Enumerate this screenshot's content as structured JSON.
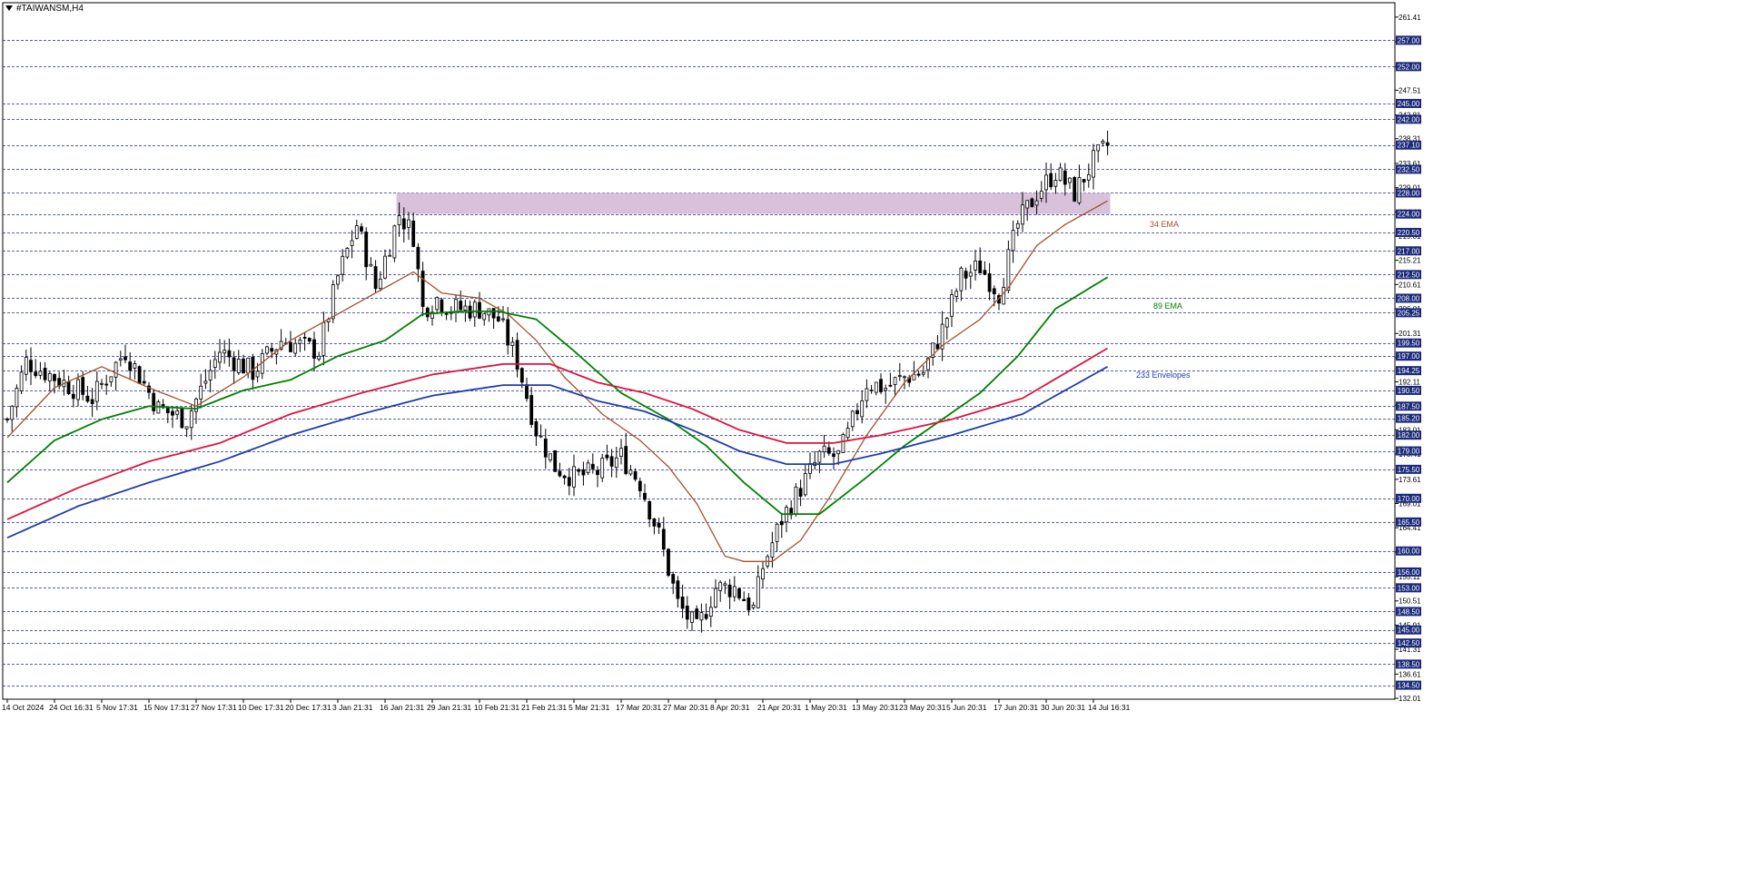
{
  "symbol": "#TAIWANSM,H4",
  "chart_data": {
    "type": "candlestick",
    "title": "#TAIWANSM,H4",
    "ylim": [
      132.01,
      262.41
    ],
    "y_ticks": [
      "261.41",
      "256.71",
      "252.01",
      "247.51",
      "242.81",
      "238.31",
      "233.61",
      "229.01",
      "224.41",
      "219.81",
      "215.21",
      "210.61",
      "206.01",
      "201.31",
      "196.71",
      "192.11",
      "187.61",
      "183.01",
      "178.41",
      "173.61",
      "169.01",
      "164.41",
      "159.81",
      "155.11",
      "150.51",
      "145.91",
      "141.31",
      "136.61",
      "132.01"
    ],
    "levels": [
      257.0,
      252.0,
      245.0,
      242.0,
      237.1,
      232.5,
      228.0,
      224.0,
      220.5,
      217.0,
      212.5,
      208.0,
      205.25,
      199.5,
      197.0,
      194.25,
      190.5,
      187.5,
      185.2,
      182.0,
      179.0,
      175.5,
      170.0,
      165.5,
      160.0,
      156.0,
      153.0,
      148.5,
      145.0,
      142.5,
      138.5,
      134.5
    ],
    "level_labels": [
      "257.00",
      "252.00",
      "245.00",
      "242.00",
      "237.10",
      "232.50",
      "228.00",
      "224.00",
      "220.50",
      "217.00",
      "212.50",
      "208.00",
      "205.25",
      "199.50",
      "197.00",
      "194.25",
      "190.50",
      "187.50",
      "185.20",
      "182.00",
      "179.00",
      "175.50",
      "170.00",
      "165.50",
      "160.00",
      "156.00",
      "153.00",
      "148.50",
      "145.00",
      "142.50",
      "138.50",
      "134.50"
    ],
    "zone": {
      "from_index": 83,
      "to_index": 233,
      "low": 224.0,
      "high": 228.0,
      "color": "#d6bfd9"
    },
    "x_labels": [
      "14 Oct 2024",
      "24 Oct 16:31",
      "5 Nov 17:31",
      "15 Nov 17:31",
      "27 Nov 17:31",
      "10 Dec 17:31",
      "20 Dec 17:31",
      "3 Jan 21:31",
      "16 Jan 21:31",
      "29 Jan 21:31",
      "10 Feb 21:31",
      "21 Feb 21:31",
      "5 Mar 21:31",
      "17 Mar 20:31",
      "27 Mar 20:31",
      "8 Apr 20:31",
      "21 Apr 20:31",
      "1 May 20:31",
      "13 May 20:31",
      "23 May 20:31",
      "5 Jun 20:31",
      "17 Jun 20:31",
      "30 Jun 20:31",
      "14 Jul 16:31"
    ],
    "x_label_index": [
      0,
      10,
      20,
      30,
      40,
      50,
      60,
      70,
      80,
      90,
      100,
      110,
      120,
      130,
      140,
      150,
      160,
      170,
      180,
      190,
      200,
      210,
      220,
      230
    ],
    "n_bars": 234,
    "close_anchors": [
      [
        0,
        185
      ],
      [
        4,
        196
      ],
      [
        10,
        193
      ],
      [
        18,
        189
      ],
      [
        25,
        198
      ],
      [
        32,
        187
      ],
      [
        38,
        185
      ],
      [
        45,
        198
      ],
      [
        52,
        194
      ],
      [
        58,
        200
      ],
      [
        66,
        198
      ],
      [
        70,
        212
      ],
      [
        74,
        222
      ],
      [
        78,
        210
      ],
      [
        83,
        224
      ],
      [
        86,
        220
      ],
      [
        88,
        206
      ],
      [
        91,
        208
      ],
      [
        94,
        206
      ],
      [
        100,
        206
      ],
      [
        104,
        204
      ],
      [
        108,
        196
      ],
      [
        112,
        183
      ],
      [
        116,
        176
      ],
      [
        120,
        174
      ],
      [
        125,
        175
      ],
      [
        130,
        178
      ],
      [
        134,
        173
      ],
      [
        138,
        163
      ],
      [
        142,
        150
      ],
      [
        146,
        145
      ],
      [
        150,
        153
      ],
      [
        154,
        153
      ],
      [
        158,
        149
      ],
      [
        160,
        157
      ],
      [
        164,
        166
      ],
      [
        168,
        172
      ],
      [
        172,
        178
      ],
      [
        176,
        178
      ],
      [
        178,
        182
      ],
      [
        182,
        192
      ],
      [
        186,
        191
      ],
      [
        190,
        193
      ],
      [
        194,
        194
      ],
      [
        198,
        202
      ],
      [
        202,
        212
      ],
      [
        206,
        214
      ],
      [
        210,
        209
      ],
      [
        214,
        222
      ],
      [
        218,
        228
      ],
      [
        222,
        232
      ],
      [
        226,
        228
      ],
      [
        230,
        234
      ],
      [
        233,
        237
      ]
    ],
    "series": [
      {
        "name": "34 EMA",
        "color": "#a0522d",
        "anchors": [
          [
            0,
            181.5
          ],
          [
            10,
            191
          ],
          [
            20,
            195
          ],
          [
            30,
            191
          ],
          [
            40,
            187.5
          ],
          [
            50,
            193
          ],
          [
            60,
            200
          ],
          [
            70,
            205
          ],
          [
            78,
            209
          ],
          [
            86,
            213
          ],
          [
            92,
            209
          ],
          [
            100,
            208
          ],
          [
            106,
            205
          ],
          [
            112,
            200
          ],
          [
            118,
            193
          ],
          [
            126,
            186
          ],
          [
            134,
            181
          ],
          [
            140,
            176
          ],
          [
            146,
            169
          ],
          [
            152,
            159
          ],
          [
            156,
            158
          ],
          [
            162,
            158
          ],
          [
            168,
            162
          ],
          [
            174,
            170
          ],
          [
            182,
            182
          ],
          [
            190,
            192
          ],
          [
            198,
            199
          ],
          [
            206,
            204
          ],
          [
            212,
            210
          ],
          [
            218,
            218
          ],
          [
            224,
            222
          ],
          [
            233,
            226.5
          ]
        ]
      },
      {
        "name": "89 EMA",
        "color": "#008000",
        "anchors": [
          [
            0,
            173
          ],
          [
            10,
            181
          ],
          [
            20,
            185
          ],
          [
            30,
            187.5
          ],
          [
            40,
            187
          ],
          [
            50,
            190.5
          ],
          [
            60,
            192.5
          ],
          [
            70,
            197
          ],
          [
            80,
            200
          ],
          [
            88,
            205
          ],
          [
            96,
            205.5
          ],
          [
            104,
            205.5
          ],
          [
            112,
            204
          ],
          [
            120,
            198
          ],
          [
            130,
            190
          ],
          [
            140,
            185
          ],
          [
            148,
            180
          ],
          [
            156,
            173
          ],
          [
            164,
            167
          ],
          [
            172,
            167
          ],
          [
            182,
            174
          ],
          [
            190,
            180
          ],
          [
            198,
            185
          ],
          [
            206,
            190
          ],
          [
            214,
            197
          ],
          [
            222,
            206
          ],
          [
            233,
            212
          ]
        ]
      },
      {
        "name": "233 Envelopes",
        "color": "#dc143c",
        "anchors": [
          [
            0,
            166
          ],
          [
            15,
            172
          ],
          [
            30,
            177
          ],
          [
            45,
            180.5
          ],
          [
            60,
            186
          ],
          [
            75,
            190
          ],
          [
            90,
            193.5
          ],
          [
            105,
            195.5
          ],
          [
            115,
            195.5
          ],
          [
            125,
            192
          ],
          [
            135,
            190
          ],
          [
            145,
            187
          ],
          [
            155,
            183
          ],
          [
            165,
            180.5
          ],
          [
            175,
            180.5
          ],
          [
            185,
            182
          ],
          [
            200,
            185
          ],
          [
            215,
            189
          ],
          [
            233,
            198.5
          ]
        ]
      },
      {
        "name": "233 Envelopes lower",
        "color": "#1e3caa",
        "anchors": [
          [
            0,
            162.5
          ],
          [
            15,
            168.5
          ],
          [
            30,
            173
          ],
          [
            45,
            177
          ],
          [
            60,
            182
          ],
          [
            75,
            186
          ],
          [
            90,
            189.5
          ],
          [
            105,
            191.5
          ],
          [
            115,
            191.5
          ],
          [
            125,
            188.5
          ],
          [
            135,
            186.5
          ],
          [
            145,
            183
          ],
          [
            155,
            179
          ],
          [
            165,
            176.5
          ],
          [
            175,
            176.5
          ],
          [
            185,
            178.5
          ],
          [
            200,
            182
          ],
          [
            215,
            186
          ],
          [
            233,
            195
          ]
        ]
      }
    ],
    "legend_labels": {
      "ema34": "34 EMA",
      "ema89": "89 EMA",
      "env233": "233 Envelopes"
    }
  }
}
